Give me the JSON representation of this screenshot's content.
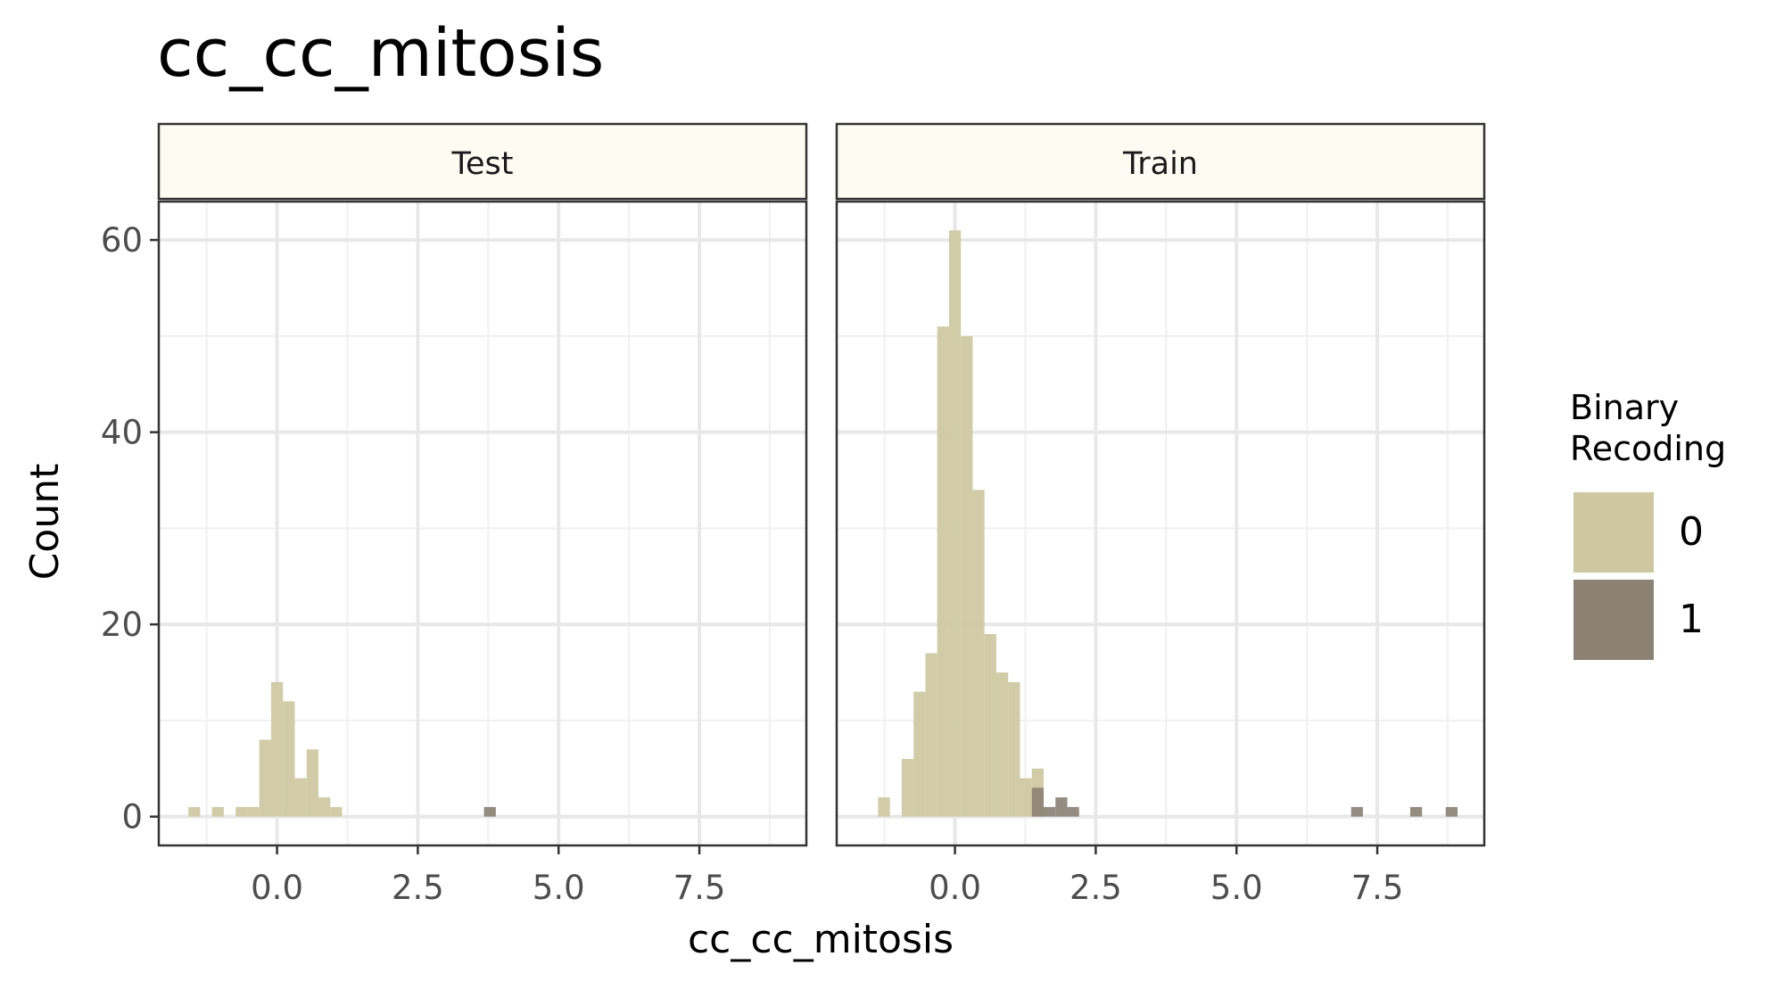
{
  "chart_data": {
    "type": "bar",
    "subtype": "faceted-histogram",
    "title": "cc_cc_mitosis",
    "xlabel": "cc_cc_mitosis",
    "ylabel": "Count",
    "xlim": [
      -2.1,
      9.4
    ],
    "ylim": [
      -3,
      64
    ],
    "x_ticks": [
      0.0,
      2.5,
      5.0,
      7.5
    ],
    "x_tick_labels": [
      "0.0",
      "2.5",
      "5.0",
      "7.5"
    ],
    "y_ticks": [
      0,
      20,
      40,
      60
    ],
    "y_tick_labels": [
      "0",
      "20",
      "40",
      "60"
    ],
    "grid": true,
    "bin_width": 0.21,
    "legend": {
      "title_lines": [
        "Binary",
        "Recoding"
      ],
      "position": "right",
      "items": [
        {
          "label": "0",
          "color": "#cdc89f"
        },
        {
          "label": "1",
          "color": "#8b8274"
        }
      ]
    },
    "panels": [
      {
        "strip": "Test",
        "series": [
          {
            "name": "0",
            "color": "#cdc89f",
            "bins": [
              {
                "x": -1.47,
                "count": 1
              },
              {
                "x": -1.05,
                "count": 1
              },
              {
                "x": -0.63,
                "count": 1
              },
              {
                "x": -0.42,
                "count": 1
              },
              {
                "x": -0.21,
                "count": 8
              },
              {
                "x": 0.0,
                "count": 14
              },
              {
                "x": 0.21,
                "count": 12
              },
              {
                "x": 0.42,
                "count": 4
              },
              {
                "x": 0.63,
                "count": 7
              },
              {
                "x": 0.84,
                "count": 2
              },
              {
                "x": 1.05,
                "count": 1
              }
            ]
          },
          {
            "name": "1",
            "color": "#8b8274",
            "bins": [
              {
                "x": 3.78,
                "count": 1
              }
            ]
          }
        ]
      },
      {
        "strip": "Train",
        "series": [
          {
            "name": "0",
            "color": "#cdc89f",
            "bins": [
              {
                "x": -1.26,
                "count": 2
              },
              {
                "x": -0.84,
                "count": 6
              },
              {
                "x": -0.63,
                "count": 13
              },
              {
                "x": -0.42,
                "count": 17
              },
              {
                "x": -0.21,
                "count": 51
              },
              {
                "x": 0.0,
                "count": 61
              },
              {
                "x": 0.21,
                "count": 50
              },
              {
                "x": 0.42,
                "count": 34
              },
              {
                "x": 0.63,
                "count": 19
              },
              {
                "x": 0.84,
                "count": 15
              },
              {
                "x": 1.05,
                "count": 14
              },
              {
                "x": 1.26,
                "count": 4
              },
              {
                "x": 1.47,
                "count": 5
              }
            ]
          },
          {
            "name": "1",
            "color": "#8b8274",
            "bins": [
              {
                "x": 1.47,
                "count": 3
              },
              {
                "x": 1.68,
                "count": 1
              },
              {
                "x": 1.89,
                "count": 2
              },
              {
                "x": 2.1,
                "count": 1
              },
              {
                "x": 7.14,
                "count": 1
              },
              {
                "x": 8.19,
                "count": 1
              },
              {
                "x": 8.82,
                "count": 1
              }
            ]
          }
        ]
      }
    ]
  }
}
